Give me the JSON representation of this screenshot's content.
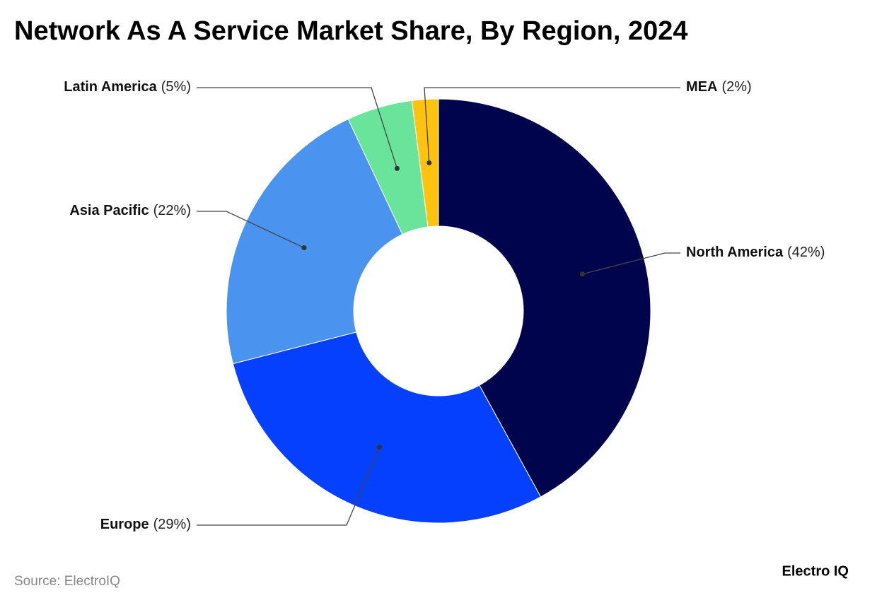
{
  "chart_data": {
    "type": "donut",
    "title": "Network As A Service Market Share, By Region, 2024",
    "categories": [
      "North America",
      "Europe",
      "Asia Pacific",
      "Latin America",
      "MEA"
    ],
    "values": [
      42,
      29,
      22,
      5,
      2
    ],
    "value_labels": [
      "(42%)",
      "(29%)",
      "(22%)",
      "(5%)",
      "(2%)"
    ],
    "colors": [
      "#00044d",
      "#0540ff",
      "#4a94f0",
      "#6be49b",
      "#ffc20e"
    ],
    "source": "Source: ElectroIQ",
    "brand": "Electro IQ"
  }
}
